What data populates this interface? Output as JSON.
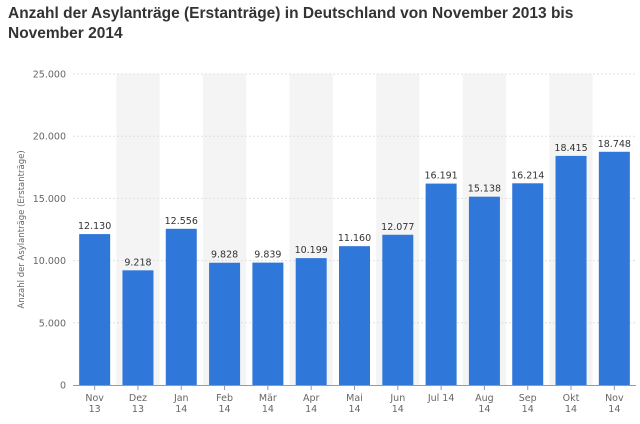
{
  "chart_data": {
    "type": "bar",
    "title": "Anzahl der Asylanträge (Erstanträge) in Deutschland von November 2013 bis November 2014",
    "xlabel": "",
    "ylabel": "Anzahl der Asylanträge (Erstanträge)",
    "ylim": [
      0,
      25000
    ],
    "yticks": [
      "0",
      "5.000",
      "10.000",
      "15.000",
      "20.000",
      "25.000"
    ],
    "grid": true,
    "legend": "none",
    "bar_color": "#2f77d8",
    "categories": [
      [
        "Nov",
        "13"
      ],
      [
        "Dez",
        "13"
      ],
      [
        "Jan",
        "14"
      ],
      [
        "Feb",
        "14"
      ],
      [
        "Mär",
        "14"
      ],
      [
        "Apr",
        "14"
      ],
      [
        "Mai",
        "14"
      ],
      [
        "Jun",
        "14"
      ],
      [
        "Jul 14"
      ],
      [
        "Aug",
        "14"
      ],
      [
        "Sep",
        "14"
      ],
      [
        "Okt",
        "14"
      ],
      [
        "Nov",
        "14"
      ]
    ],
    "values": [
      12130,
      9218,
      12556,
      9828,
      9839,
      10199,
      11160,
      12077,
      16191,
      15138,
      16214,
      18415,
      18748
    ],
    "value_labels": [
      "12.130",
      "9.218",
      "12.556",
      "9.828",
      "9.839",
      "10.199",
      "11.160",
      "12.077",
      "16.191",
      "15.138",
      "16.214",
      "18.415",
      "18.748"
    ]
  }
}
